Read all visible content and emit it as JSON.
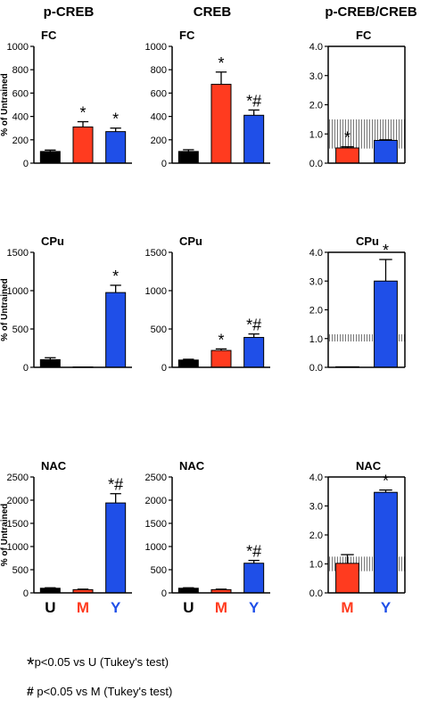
{
  "column_titles": [
    "p-CREB",
    "CREB",
    "p-CREB/CREB"
  ],
  "ylabel": "% of Untrained",
  "colors": {
    "U": "#000000",
    "M": "#ff3b1f",
    "Y": "#1f4fe8"
  },
  "chart_data": [
    {
      "type": "bar",
      "title": "FC",
      "categories": [
        "U",
        "M",
        "Y"
      ],
      "values": [
        100,
        310,
        270
      ],
      "errors": [
        12,
        45,
        30
      ],
      "marks": [
        "",
        "*",
        "*"
      ],
      "ylim": [
        0,
        1000
      ],
      "yticks": [
        0,
        200,
        400,
        600,
        800,
        1000
      ],
      "ytick_labels": [
        "0",
        "200",
        "400",
        "600",
        "800",
        "1000"
      ],
      "show_ylabel": true
    },
    {
      "type": "bar",
      "title": "FC",
      "categories": [
        "U",
        "M",
        "Y"
      ],
      "values": [
        100,
        675,
        410
      ],
      "errors": [
        15,
        105,
        45
      ],
      "marks": [
        "",
        "*",
        "*#"
      ],
      "ylim": [
        0,
        1000
      ],
      "yticks": [
        0,
        200,
        400,
        600,
        800,
        1000
      ],
      "ytick_labels": [
        "0",
        "200",
        "400",
        "600",
        "800",
        "1000"
      ]
    },
    {
      "type": "bar",
      "title": "FC",
      "categories": [
        "M",
        "Y"
      ],
      "values": [
        0.52,
        0.78
      ],
      "errors": [
        0.04,
        0.02
      ],
      "marks": [
        "*",
        ""
      ],
      "band": [
        0.5,
        1.5
      ],
      "ylim": [
        0,
        4.0
      ],
      "yticks": [
        0,
        1,
        2,
        3,
        4
      ],
      "ytick_labels": [
        "0.0",
        "1.0",
        "2.0",
        "3.0",
        "4.0"
      ]
    },
    {
      "type": "bar",
      "title": "CPu",
      "categories": [
        "U",
        "M",
        "Y"
      ],
      "values": [
        100,
        5,
        975
      ],
      "errors": [
        25,
        0,
        95
      ],
      "marks": [
        "",
        "",
        "*"
      ],
      "ylim": [
        0,
        1500
      ],
      "yticks": [
        0,
        500,
        1000,
        1500
      ],
      "ytick_labels": [
        "0",
        "500",
        "1000",
        "1500"
      ],
      "show_ylabel": true
    },
    {
      "type": "bar",
      "title": "CPu",
      "categories": [
        "U",
        "M",
        "Y"
      ],
      "values": [
        95,
        220,
        390
      ],
      "errors": [
        10,
        20,
        45
      ],
      "marks": [
        "",
        "*",
        "*#"
      ],
      "ylim": [
        0,
        1500
      ],
      "yticks": [
        0,
        500,
        1000,
        1500
      ],
      "ytick_labels": [
        "0",
        "500",
        "1000",
        "1500"
      ]
    },
    {
      "type": "bar",
      "title": "CPu",
      "categories": [
        "M",
        "Y"
      ],
      "values": [
        0.02,
        3.0
      ],
      "errors": [
        0,
        0.75
      ],
      "marks": [
        "",
        "*"
      ],
      "band": [
        0.9,
        1.15
      ],
      "ylim": [
        0,
        4.0
      ],
      "yticks": [
        0,
        1,
        2,
        3,
        4
      ],
      "ytick_labels": [
        "0.0",
        "1.0",
        "2.0",
        "3.0",
        "4.0"
      ]
    },
    {
      "type": "bar",
      "title": "NAC",
      "categories": [
        "U",
        "M",
        "Y"
      ],
      "values": [
        100,
        70,
        1940
      ],
      "errors": [
        10,
        10,
        200
      ],
      "marks": [
        "",
        "",
        "*#"
      ],
      "ylim": [
        0,
        2500
      ],
      "yticks": [
        0,
        500,
        1000,
        1500,
        2000,
        2500
      ],
      "ytick_labels": [
        "0",
        "500",
        "1000",
        "1500",
        "2000",
        "2500"
      ],
      "show_ylabel": true,
      "show_xlabels": true
    },
    {
      "type": "bar",
      "title": "NAC",
      "categories": [
        "U",
        "M",
        "Y"
      ],
      "values": [
        100,
        70,
        640
      ],
      "errors": [
        10,
        10,
        60
      ],
      "marks": [
        "",
        "",
        "*#"
      ],
      "ylim": [
        0,
        2500
      ],
      "yticks": [
        0,
        500,
        1000,
        1500,
        2000,
        2500
      ],
      "ytick_labels": [
        "0",
        "500",
        "1000",
        "1500",
        "2000",
        "2500"
      ],
      "show_xlabels": true
    },
    {
      "type": "bar",
      "title": "NAC",
      "categories": [
        "M",
        "Y"
      ],
      "values": [
        1.02,
        3.47
      ],
      "errors": [
        0.3,
        0.08
      ],
      "marks": [
        "",
        "*"
      ],
      "band": [
        0.75,
        1.25
      ],
      "ylim": [
        0,
        4.0
      ],
      "yticks": [
        0,
        1,
        2,
        3,
        4
      ],
      "ytick_labels": [
        "0.0",
        "1.0",
        "2.0",
        "3.0",
        "4.0"
      ],
      "show_xlabels": true
    }
  ],
  "footnotes": {
    "star_symbol": "*",
    "star_text": "p<0.05 vs U (Tukey's test)",
    "hash_symbol": "#",
    "hash_text": "p<0.05 vs M (Tukey's test)"
  }
}
